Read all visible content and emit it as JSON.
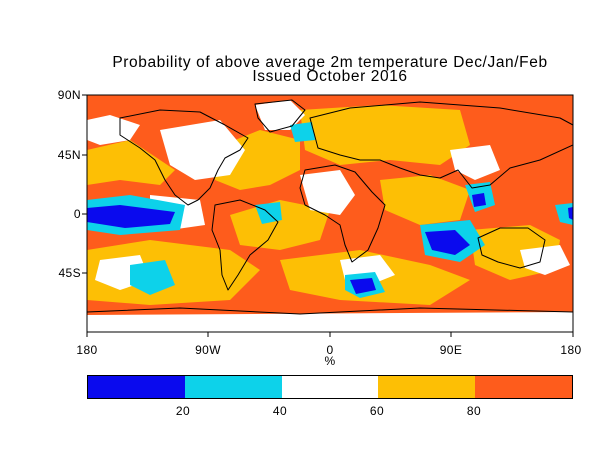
{
  "map": {
    "title_line1": "Probability of above average 2m temperature Dec/Jan/Feb",
    "title_line2": "Issued October 2016",
    "lat_labels": [
      "90N",
      "45N",
      "0",
      "45S"
    ],
    "lon_labels": [
      "180",
      "90W",
      "0",
      "90E",
      "180"
    ],
    "unit": "%"
  },
  "legend": {
    "bins": [
      {
        "range": "0-20",
        "color": "#0a0aee"
      },
      {
        "range": "20-40",
        "color": "#0dd2ea"
      },
      {
        "range": "40-60",
        "color": "#ffffff"
      },
      {
        "range": "60-80",
        "color": "#fdbf05"
      },
      {
        "range": "80-100",
        "color": "#fe5c1c"
      }
    ],
    "tick_labels": [
      "20",
      "40",
      "60",
      "80"
    ]
  },
  "colors": {
    "ocean_background": "#fe5c1c",
    "land_outline": "#000000"
  }
}
